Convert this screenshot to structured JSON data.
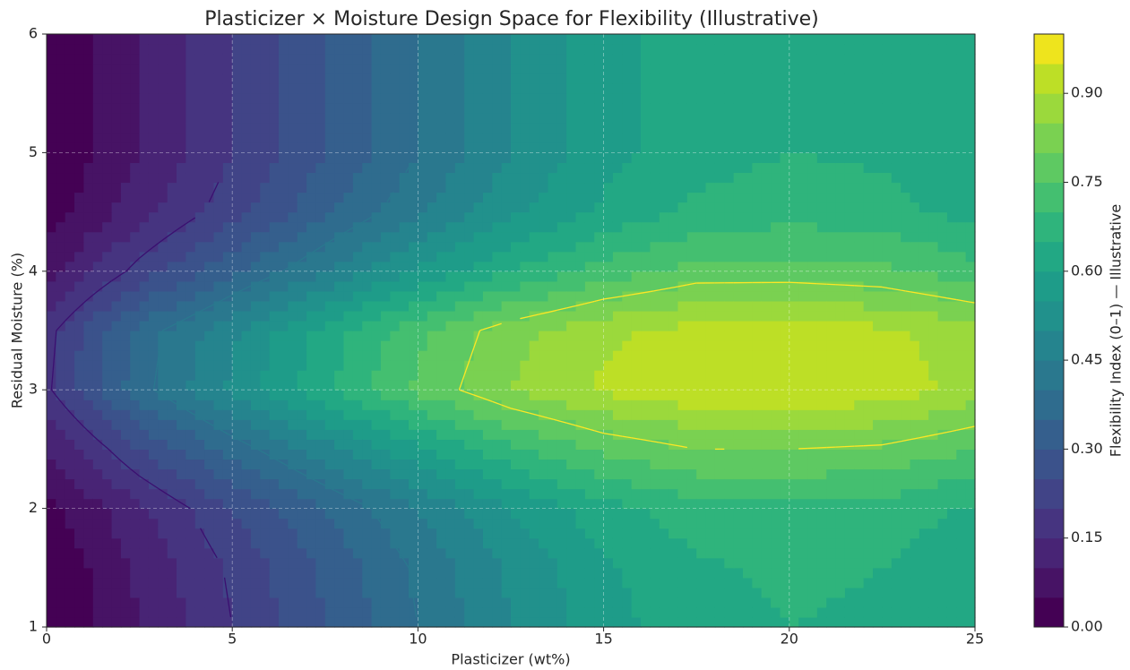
{
  "chart_data": {
    "type": "contour",
    "title": "Plasticizer × Moisture Design Space for Flexibility (Illustrative)",
    "x_label": "Plasticizer (wt%)",
    "y_label": "Residual Moisture (%)",
    "colorbar_label": "Flexibility Index (0–1) — Illustrative",
    "x": [
      0,
      2.5,
      5,
      7.5,
      10,
      12.5,
      15,
      17.5,
      20,
      22.5,
      25
    ],
    "y": [
      1,
      1.5,
      2,
      2.5,
      3,
      3.5,
      4,
      4.5,
      5,
      5.5,
      6
    ],
    "z": [
      [
        0,
        0.1,
        0.2,
        0.3,
        0.4,
        0.5,
        0.58,
        0.63,
        0.65,
        0.64,
        0.6
      ],
      [
        0,
        0.11,
        0.21,
        0.31,
        0.41,
        0.51,
        0.59,
        0.64,
        0.66,
        0.65,
        0.61
      ],
      [
        0.03,
        0.14,
        0.25,
        0.35,
        0.45,
        0.55,
        0.63,
        0.68,
        0.69,
        0.68,
        0.64
      ],
      [
        0.1,
        0.25,
        0.37,
        0.48,
        0.59,
        0.69,
        0.76,
        0.8,
        0.8,
        0.79,
        0.75
      ],
      [
        0.19,
        0.38,
        0.51,
        0.64,
        0.76,
        0.85,
        0.91,
        0.94,
        0.95,
        0.93,
        0.88
      ],
      [
        0.18,
        0.37,
        0.49,
        0.62,
        0.74,
        0.83,
        0.89,
        0.92,
        0.93,
        0.91,
        0.87
      ],
      [
        0.08,
        0.22,
        0.34,
        0.45,
        0.56,
        0.65,
        0.72,
        0.77,
        0.77,
        0.76,
        0.72
      ],
      [
        0.02,
        0.13,
        0.23,
        0.34,
        0.44,
        0.54,
        0.61,
        0.66,
        0.68,
        0.67,
        0.63
      ],
      [
        0,
        0.1,
        0.2,
        0.3,
        0.4,
        0.5,
        0.58,
        0.63,
        0.65,
        0.64,
        0.6
      ],
      [
        0,
        0.1,
        0.2,
        0.3,
        0.4,
        0.5,
        0.58,
        0.63,
        0.65,
        0.64,
        0.6
      ],
      [
        0,
        0.1,
        0.2,
        0.3,
        0.4,
        0.5,
        0.58,
        0.63,
        0.65,
        0.64,
        0.6
      ]
    ],
    "levels": [
      0,
      0.05,
      0.1,
      0.15,
      0.2,
      0.25,
      0.3,
      0.35,
      0.4,
      0.45,
      0.5,
      0.55,
      0.6,
      0.65,
      0.7,
      0.75,
      0.8,
      0.85,
      0.9,
      0.95,
      1
    ],
    "colors": [
      "#440154",
      "#471365",
      "#482475",
      "#463480",
      "#414487",
      "#3b528b",
      "#355f8d",
      "#2f6c8e",
      "#2a788e",
      "#25848e",
      "#21918c",
      "#1e9c89",
      "#22a884",
      "#2fb47c",
      "#44bf70",
      "#5ec962",
      "#7ad151",
      "#9bd93c",
      "#bddf26",
      "#eee41d"
    ],
    "contour_lines": [
      {
        "level": 0.2,
        "color": "#3b0f70"
      },
      {
        "level": 0.4,
        "color": "#2a788e"
      },
      {
        "level": 0.8,
        "color": "#fde725"
      }
    ],
    "xlim": [
      0,
      25
    ],
    "ylim": [
      1,
      6
    ],
    "xticks": [
      0,
      5,
      10,
      15,
      20,
      25
    ],
    "yticks": [
      1,
      2,
      3,
      4,
      5,
      6
    ],
    "clim": [
      0,
      1
    ],
    "cticks": [
      {
        "value": 0,
        "label": "0.00"
      },
      {
        "value": 0.15,
        "label": "0.15"
      },
      {
        "value": 0.3,
        "label": "0.30"
      },
      {
        "value": 0.45,
        "label": "0.45"
      },
      {
        "value": 0.6,
        "label": "0.60"
      },
      {
        "value": 0.75,
        "label": "0.75"
      },
      {
        "value": 0.9,
        "label": "0.90"
      }
    ],
    "grid": true
  }
}
